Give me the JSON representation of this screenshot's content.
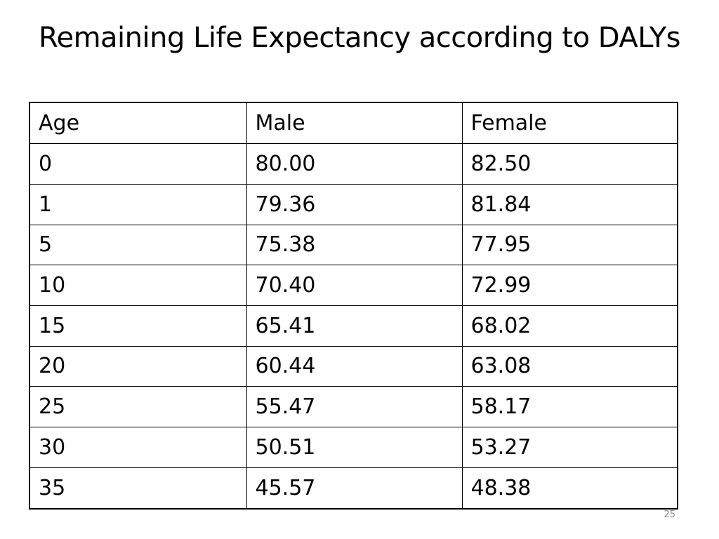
{
  "slide": {
    "title": "Remaining Life Expectancy according to DALYs",
    "page_number": "25"
  },
  "table": {
    "headers": [
      "Age",
      "Male",
      "Female"
    ],
    "rows": [
      [
        "0",
        "80.00",
        "82.50"
      ],
      [
        "1",
        "79.36",
        "81.84"
      ],
      [
        "5",
        "75.38",
        "77.95"
      ],
      [
        "10",
        "70.40",
        "72.99"
      ],
      [
        "15",
        "65.41",
        "68.02"
      ],
      [
        "20",
        "60.44",
        "63.08"
      ],
      [
        "25",
        "55.47",
        "58.17"
      ],
      [
        "30",
        "50.51",
        "53.27"
      ],
      [
        "35",
        "45.57",
        "48.38"
      ]
    ]
  }
}
